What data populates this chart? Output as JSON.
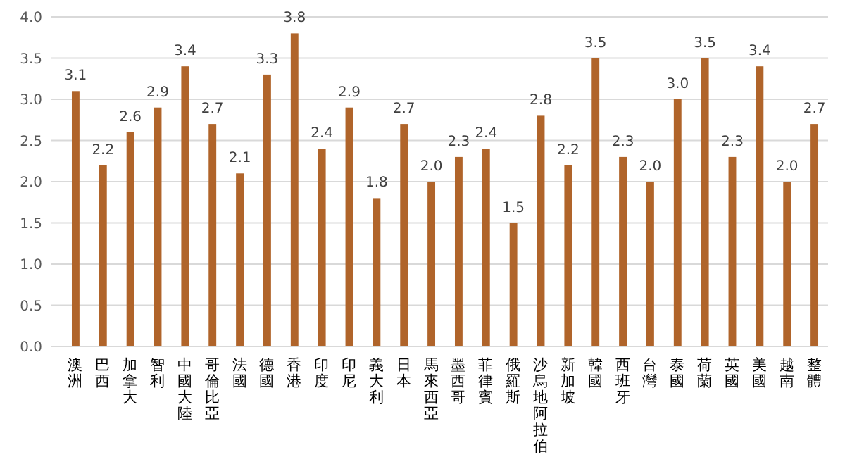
{
  "chart_data": {
    "type": "bar",
    "categories": [
      "澳洲",
      "巴西",
      "加拿大",
      "智利",
      "中國大陸",
      "哥倫比亞",
      "法國",
      "德國",
      "香港",
      "印度",
      "印尼",
      "義大利",
      "日本",
      "馬來西亞",
      "墨西哥",
      "菲律賓",
      "俄羅斯",
      "沙烏地阿拉伯",
      "新加坡",
      "韓國",
      "西班牙",
      "台灣",
      "泰國",
      "荷蘭",
      "英國",
      "美國",
      "越南",
      "整體"
    ],
    "values": [
      3.1,
      2.2,
      2.6,
      2.9,
      3.4,
      2.7,
      2.1,
      3.3,
      3.8,
      2.4,
      2.9,
      1.8,
      2.7,
      2.0,
      2.3,
      2.4,
      1.5,
      2.8,
      2.2,
      3.5,
      2.3,
      2.0,
      3.0,
      3.5,
      2.3,
      3.4,
      2.0,
      2.7
    ],
    "value_labels": [
      "3.1",
      "2.2",
      "2.6",
      "2.9",
      "3.4",
      "2.7",
      "2.1",
      "3.3",
      "3.8",
      "2.4",
      "2.9",
      "1.8",
      "2.7",
      "2.0",
      "2.3",
      "2.4",
      "1.5",
      "2.8",
      "2.2",
      "3.5",
      "2.3",
      "2.0",
      "3.0",
      "3.5",
      "2.3",
      "3.4",
      "2.0",
      "2.7"
    ],
    "color": "#b0642a",
    "ylim": [
      0,
      4
    ],
    "yticks": [
      {
        "value": 0,
        "label": "0.0"
      },
      {
        "value": 0.5,
        "label": "0.5"
      },
      {
        "value": 1,
        "label": "1.0"
      },
      {
        "value": 1.5,
        "label": "1.5"
      },
      {
        "value": 2,
        "label": "2.0"
      },
      {
        "value": 2.5,
        "label": "2.5"
      },
      {
        "value": 3,
        "label": "3.0"
      },
      {
        "value": 3.5,
        "label": "3.5"
      },
      {
        "value": 4,
        "label": "4.0"
      }
    ],
    "grid": "y"
  }
}
